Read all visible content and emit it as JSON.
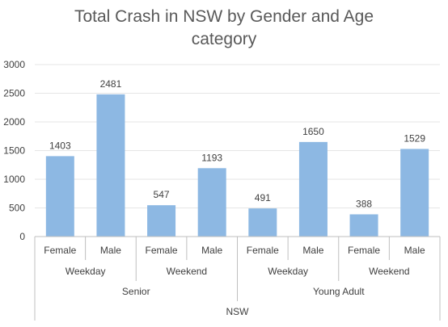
{
  "chart_data": {
    "type": "bar",
    "title_lines": [
      "Total Crash in NSW by Gender and Age",
      "category"
    ],
    "ylim": [
      0,
      3000
    ],
    "yticks": [
      0,
      500,
      1000,
      1500,
      2000,
      2500,
      3000
    ],
    "grid": true,
    "legend": "none",
    "bar_color": "#8db8e3",
    "categories": [
      {
        "gender": "Female",
        "day": "Weekday",
        "age": "Senior",
        "value": 1403
      },
      {
        "gender": "Male",
        "day": "Weekday",
        "age": "Senior",
        "value": 2481
      },
      {
        "gender": "Female",
        "day": "Weekend",
        "age": "Senior",
        "value": 547
      },
      {
        "gender": "Male",
        "day": "Weekend",
        "age": "Senior",
        "value": 1193
      },
      {
        "gender": "Female",
        "day": "Weekday",
        "age": "Young Adult",
        "value": 491
      },
      {
        "gender": "Male",
        "day": "Weekday",
        "age": "Young Adult",
        "value": 1650
      },
      {
        "gender": "Female",
        "day": "Weekend",
        "age": "Young Adult",
        "value": 388
      },
      {
        "gender": "Male",
        "day": "Weekend",
        "age": "Young Adult",
        "value": 1529
      }
    ],
    "day_groups": [
      "Weekday",
      "Weekend",
      "Weekday",
      "Weekend"
    ],
    "age_groups": [
      "Senior",
      "Young Adult"
    ],
    "region": "NSW"
  }
}
